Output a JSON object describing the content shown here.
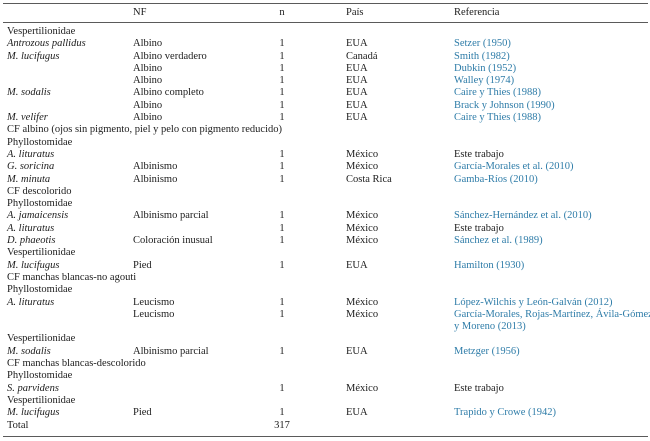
{
  "colors": {
    "link_blue": "#2e7ca8",
    "text": "#1c1c1c",
    "rule_gray": "#5a5a5a"
  },
  "header": {
    "species": "",
    "nf": "NF",
    "n": "n",
    "pais": "País",
    "referencia": "Referencia"
  },
  "rows": [
    {
      "type": "section",
      "label": "Vespertilionidae"
    },
    {
      "type": "data",
      "species": "Antrozous pallidus",
      "nf": "Albino",
      "n": "1",
      "pais": "EUA",
      "ref": "Setzer (1950)",
      "ref_link": true
    },
    {
      "type": "data",
      "species": "M. lucifugus",
      "nf": "Albino verdadero",
      "n": "1",
      "pais": "Canadá",
      "ref": "Smith (1982)",
      "ref_link": true
    },
    {
      "type": "data",
      "species": "",
      "nf": "Albino",
      "n": "1",
      "pais": "EUA",
      "ref": "Dubkin (1952)",
      "ref_link": true
    },
    {
      "type": "data",
      "species": "",
      "nf": "Albino",
      "n": "1",
      "pais": "EUA",
      "ref": "Walley (1974)",
      "ref_link": true
    },
    {
      "type": "data",
      "species": "M. sodalis",
      "nf": "Albino completo",
      "n": "1",
      "pais": "EUA",
      "ref": "Caire y Thies (1988)",
      "ref_link": true
    },
    {
      "type": "data",
      "species": "",
      "nf": "Albino",
      "n": "1",
      "pais": "EUA",
      "ref": "Brack y Johnson (1990)",
      "ref_link": true
    },
    {
      "type": "data",
      "species": "M. velifer",
      "nf": "Albino",
      "n": "1",
      "pais": "EUA",
      "ref": "Caire y Thies (1988)",
      "ref_link": true
    },
    {
      "type": "section",
      "label": "CF albino (ojos sin pigmento, piel y pelo con pigmento reducido)"
    },
    {
      "type": "section",
      "label": "Phyllostomidae"
    },
    {
      "type": "data",
      "species": "A. lituratus",
      "nf": "",
      "n": "1",
      "pais": "México",
      "ref": "Este trabajo",
      "ref_link": false
    },
    {
      "type": "data",
      "species": "G. soricina",
      "nf": "Albinismo",
      "n": "1",
      "pais": "México",
      "ref": "García-Morales et al. (2010)",
      "ref_link": true
    },
    {
      "type": "data",
      "species": "M. minuta",
      "nf": "Albinismo",
      "n": "1",
      "pais": "Costa Rica",
      "ref": "Gamba-Ríos (2010)",
      "ref_link": true
    },
    {
      "type": "section",
      "label": "CF descolorido"
    },
    {
      "type": "section",
      "label": "Phyllostomidae"
    },
    {
      "type": "data",
      "species": "A. jamaicensis",
      "nf": "Albinismo parcial",
      "n": "1",
      "pais": "México",
      "ref": "Sánchez-Hernández et al. (2010)",
      "ref_link": true
    },
    {
      "type": "data",
      "species": "A. lituratus",
      "nf": "",
      "n": "1",
      "pais": "México",
      "ref": "Este trabajo",
      "ref_link": false
    },
    {
      "type": "data",
      "species": "D. phaeotis",
      "nf": "Coloración inusual",
      "n": "1",
      "pais": "México",
      "ref": "Sánchez et al. (1989)",
      "ref_link": true
    },
    {
      "type": "section",
      "label": "Vespertilionidae"
    },
    {
      "type": "data",
      "species": "M. lucifugus",
      "nf": "Pied",
      "n": "1",
      "pais": "EUA",
      "ref": "Hamilton (1930)",
      "ref_link": true
    },
    {
      "type": "section",
      "label": "CF manchas blancas-no agouti"
    },
    {
      "type": "section",
      "label": "Phyllostomidae"
    },
    {
      "type": "data",
      "species": "A. lituratus",
      "nf": "Leucismo",
      "n": "1",
      "pais": "México",
      "ref": "López-Wilchis y León-Galván (2012)",
      "ref_link": true
    },
    {
      "type": "data",
      "species": "",
      "nf": "Leucismo",
      "n": "1",
      "pais": "México",
      "ref": "García-Morales, Rojas-Martínez, Ávila-Gómez",
      "ref2": "y Moreno (2013)",
      "ref_link": true
    },
    {
      "type": "section",
      "label": "Vespertilionidae"
    },
    {
      "type": "data",
      "species": "M. sodalis",
      "nf": "Albinismo parcial",
      "n": "1",
      "pais": "EUA",
      "ref": "Metzger (1956)",
      "ref_link": true
    },
    {
      "type": "section",
      "label": "CF manchas blancas-descolorido"
    },
    {
      "type": "section",
      "label": "Phyllostomidae"
    },
    {
      "type": "data",
      "species": "S. parvidens",
      "nf": "",
      "n": "1",
      "pais": "México",
      "ref": "Este trabajo",
      "ref_link": false
    },
    {
      "type": "section",
      "label": "Vespertilionidae"
    },
    {
      "type": "data",
      "species": "M. lucifugus",
      "nf": "Pied",
      "n": "1",
      "pais": "EUA",
      "ref": "Trapido y Crowe (1942)",
      "ref_link": true
    },
    {
      "type": "total",
      "label": "Total",
      "n": "317"
    }
  ]
}
